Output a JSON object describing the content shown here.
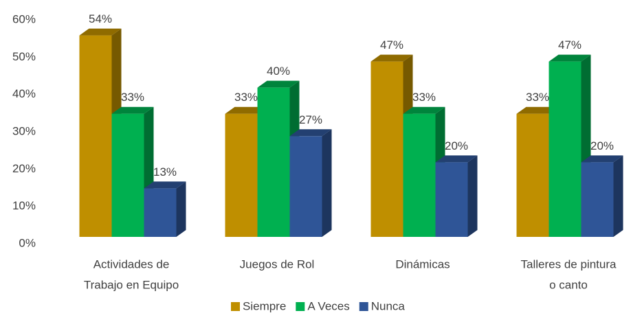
{
  "chart_data": {
    "type": "bar3d",
    "categories": [
      [
        "Actividades de",
        "Trabajo en Equipo"
      ],
      [
        "Juegos de Rol"
      ],
      [
        "Dinámicas"
      ],
      [
        "Talleres de pintura",
        "o canto"
      ]
    ],
    "series": [
      {
        "name": "Siempre",
        "color": "#bf8f00",
        "values": [
          54,
          33,
          47,
          33
        ],
        "value_labels": [
          "54%",
          "33%",
          "47%",
          "33%"
        ]
      },
      {
        "name": "A Veces",
        "color": "#00b050",
        "values": [
          33,
          40,
          33,
          47
        ],
        "value_labels": [
          "33%",
          "40%",
          "33%",
          "47%"
        ]
      },
      {
        "name": "Nunca",
        "color": "#2f5597",
        "values": [
          13,
          27,
          20,
          20
        ],
        "value_labels": [
          "13%",
          "27%",
          "20%",
          "20%"
        ]
      }
    ],
    "ylim": [
      0,
      60
    ],
    "yticks": [
      {
        "value": 0,
        "label": "0%"
      },
      {
        "value": 10,
        "label": "10%"
      },
      {
        "value": 20,
        "label": "20%"
      },
      {
        "value": 30,
        "label": "30%"
      },
      {
        "value": 40,
        "label": "40%"
      },
      {
        "value": 50,
        "label": "50%"
      },
      {
        "value": 60,
        "label": "60%"
      }
    ],
    "legend": "bottom"
  }
}
